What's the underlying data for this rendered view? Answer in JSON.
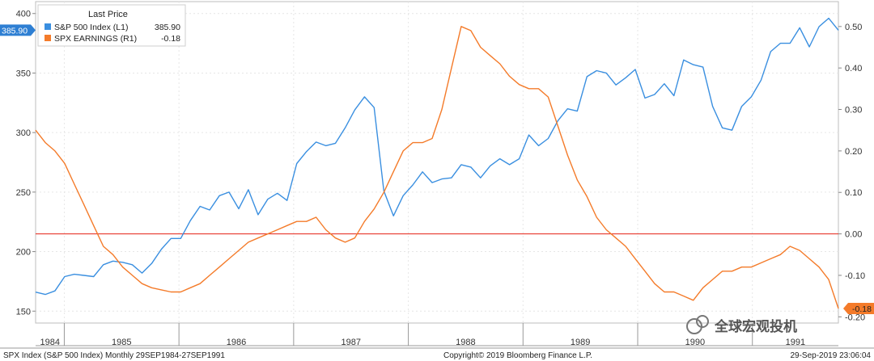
{
  "chart_data": {
    "type": "line",
    "x_start": 1984.75,
    "x_end": 1991.75,
    "x_label_years": [
      "1984",
      "1985",
      "1986",
      "1987",
      "1988",
      "1989",
      "1990",
      "1991"
    ],
    "y_left": {
      "min": 140,
      "max": 410,
      "ticks": [
        150,
        200,
        250,
        300,
        350,
        400
      ]
    },
    "y_right": {
      "min": -0.215,
      "max": 0.56,
      "ticks": [
        "0.50",
        "0.40",
        "0.30",
        "0.20",
        "0.10",
        "0.00",
        "-0.10",
        "-0.20"
      ]
    },
    "zero_line_value": 0,
    "legend": {
      "title": "Last Price",
      "entries": [
        {
          "name": "S&P 500 Index  (L1)",
          "value": "385.90",
          "color": "#3a8fe0"
        },
        {
          "name": "SPX EARNINGS  (R1)",
          "value": "-0.18",
          "color": "#f47b2a"
        }
      ]
    },
    "last_badges": {
      "left": "385.90",
      "right": "-0.18"
    },
    "series": [
      {
        "name": "S&P 500 Index",
        "axis": "left",
        "color": "#3a8fe0",
        "values": [
          166,
          164,
          167,
          179,
          181,
          180,
          179,
          189,
          192,
          191,
          189,
          182,
          190,
          202,
          211,
          211,
          226,
          238,
          235,
          247,
          250,
          236,
          252,
          231,
          244,
          249,
          243,
          274,
          284,
          292,
          289,
          291,
          304,
          319,
          330,
          321,
          251,
          230,
          247,
          256,
          267,
          258,
          261,
          262,
          273,
          271,
          262,
          272,
          278,
          273,
          278,
          298,
          289,
          295,
          310,
          320,
          318,
          347,
          352,
          350,
          340,
          346,
          353,
          329,
          332,
          341,
          331,
          361,
          357,
          355,
          322,
          304,
          302,
          322,
          330,
          344,
          368,
          375,
          375,
          388,
          372,
          389,
          396,
          386
        ]
      },
      {
        "name": "SPX EARNINGS",
        "axis": "right",
        "color": "#f47b2a",
        "values": [
          0.25,
          0.22,
          0.2,
          0.17,
          0.12,
          0.07,
          0.02,
          -0.03,
          -0.05,
          -0.08,
          -0.1,
          -0.12,
          -0.13,
          -0.135,
          -0.14,
          -0.14,
          -0.13,
          -0.12,
          -0.1,
          -0.08,
          -0.06,
          -0.04,
          -0.02,
          -0.01,
          0.0,
          0.01,
          0.02,
          0.03,
          0.03,
          0.04,
          0.01,
          -0.01,
          -0.02,
          -0.01,
          0.03,
          0.06,
          0.1,
          0.15,
          0.2,
          0.22,
          0.22,
          0.23,
          0.3,
          0.4,
          0.5,
          0.49,
          0.45,
          0.43,
          0.41,
          0.38,
          0.36,
          0.35,
          0.35,
          0.33,
          0.26,
          0.19,
          0.13,
          0.09,
          0.04,
          0.01,
          -0.01,
          -0.03,
          -0.06,
          -0.09,
          -0.12,
          -0.14,
          -0.14,
          -0.15,
          -0.16,
          -0.13,
          -0.11,
          -0.09,
          -0.09,
          -0.08,
          -0.08,
          -0.07,
          -0.06,
          -0.05,
          -0.03,
          -0.04,
          -0.06,
          -0.08,
          -0.11,
          -0.18
        ]
      }
    ]
  },
  "footer": {
    "left": "SPX Index (S&P 500 Index) Monthly 29SEP1984-27SEP1991",
    "center": "Copyright© 2019 Bloomberg Finance L.P.",
    "right": "29-Sep-2019 23:06:04"
  },
  "watermark": "全球宏观投机"
}
